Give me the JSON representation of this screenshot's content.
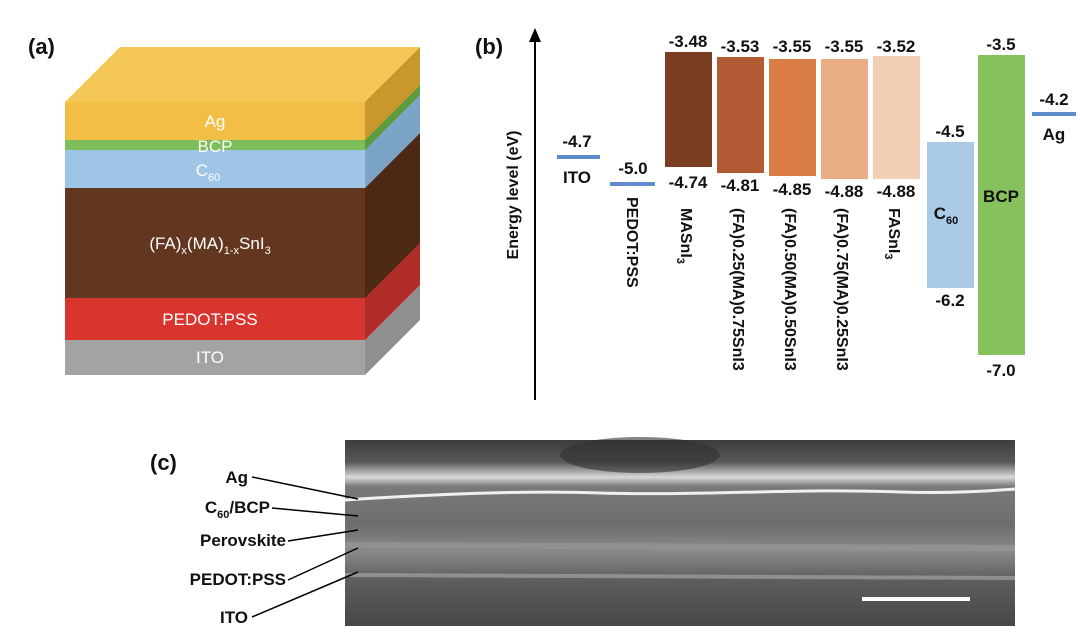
{
  "panels": {
    "a": "(a)",
    "b": "(b)",
    "c": "(c)"
  },
  "stack": {
    "layers": [
      {
        "key": "ag",
        "label": "Ag",
        "color": "#f2c14e"
      },
      {
        "key": "bcp",
        "label": "BCP",
        "color": "#7dbe5a"
      },
      {
        "key": "c60",
        "label": "C",
        "sub": "60",
        "color": "#9ec5e6"
      },
      {
        "key": "perovskite",
        "label": "(FA)",
        "sub1": "x",
        "mid": "(MA)",
        "sub2": "1-x",
        "tail": "SnI",
        "sub3": "3",
        "color": "#6b3a22"
      },
      {
        "key": "pedot",
        "label": "PEDOT:PSS",
        "color": "#d83a36"
      },
      {
        "key": "ito",
        "label": "ITO",
        "color": "#a8a8a8"
      }
    ]
  },
  "energy": {
    "axis_label": "Energy level (eV)",
    "levels": {
      "ito": {
        "value": "-4.7",
        "label": "ITO"
      },
      "pedot": {
        "value": "-5.0",
        "label": "PEDOT:PSS"
      },
      "ag": {
        "value": "-4.2",
        "label": "Ag"
      }
    },
    "bars": [
      {
        "top": "-3.48",
        "bottom": "-4.74",
        "color": "#7a3e22",
        "label_main": "MASnI",
        "label_sub": "3"
      },
      {
        "top": "-3.53",
        "bottom": "-4.81",
        "color": "#b25a34",
        "label_main": "(FA)0.25(MA)0.75SnI3"
      },
      {
        "top": "-3.55",
        "bottom": "-4.85",
        "color": "#d97c45",
        "label_main": "(FA)0.50(MA)0.50SnI3"
      },
      {
        "top": "-3.55",
        "bottom": "-4.88",
        "color": "#e9ae85",
        "label_main": "(FA)0.75(MA)0.25SnI3"
      },
      {
        "top": "-3.52",
        "bottom": "-4.88",
        "color": "#f1ceb4",
        "label_main": "FASnI",
        "label_sub": "3"
      }
    ],
    "c60": {
      "top": "-4.5",
      "bottom": "-6.2",
      "label": "C",
      "sub": "60",
      "color": "#a9c9e6"
    },
    "bcp": {
      "top": "-3.5",
      "bottom": "-7.0",
      "label": "BCP",
      "color": "#86c15d"
    }
  },
  "sem": {
    "labels": [
      "Ag",
      "C60/BCP",
      "Perovskite",
      "PEDOT:PSS",
      "ITO"
    ],
    "c60_main": "C",
    "c60_sub": "60",
    "c60_tail": "/BCP"
  }
}
